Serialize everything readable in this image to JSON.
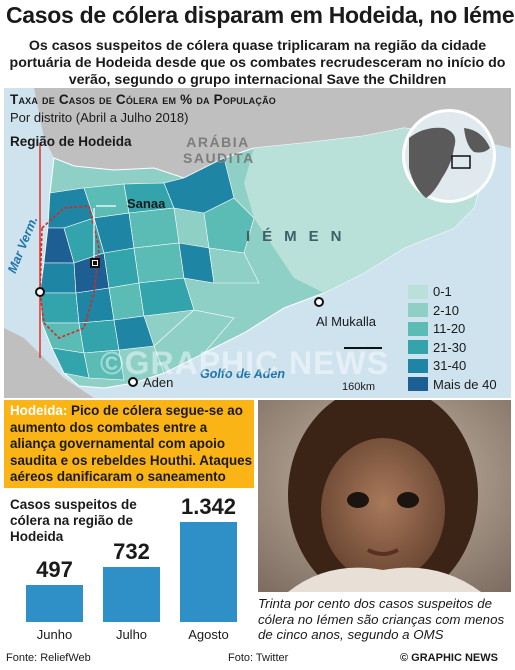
{
  "title": "Casos de cólera disparam em Hodeida, no Iémen",
  "subtitle": "Os casos suspeitos de cólera quase triplicaram na região da cidade portuária de Hodeida desde que os combates recrudesceram no início do verão, segundo o grupo internacional Save the Children",
  "map": {
    "title": "Taxa de Casos de Cólera em % da População",
    "subtitle": "Por distrito (Abril a Julho 2018)",
    "region_label": "Região de Hodeida",
    "labels": {
      "saudi": "ARÁBIA SAUDITA",
      "yemen": "IÉMEN",
      "sanaa": "Sanaa",
      "mukalla": "Al Mukalla",
      "aden": "Aden",
      "red_sea": "Mar Verm.",
      "gulf": "Golfo de Aden"
    },
    "scale": "160km",
    "legend": [
      {
        "label": "0-1",
        "color": "#b9e1da"
      },
      {
        "label": "2-10",
        "color": "#8fd0c6"
      },
      {
        "label": "11-20",
        "color": "#5bbcb6"
      },
      {
        "label": "21-30",
        "color": "#33a4ac"
      },
      {
        "label": "31-40",
        "color": "#1f85a4"
      },
      {
        "label": "Mais de 40",
        "color": "#1d5f93"
      }
    ]
  },
  "info": {
    "head": "Hodeida:",
    "body": " Pico de cólera segue-se ao aumento dos combates entre a aliança governamental com apoio saudita e os rebeldes Houthi. Ataques aéreos danificaram o saneamento"
  },
  "chart_data": {
    "type": "bar",
    "title": "Casos suspeitos de cólera na região de Hodeida",
    "categories": [
      "Junho",
      "Julho",
      "Agosto"
    ],
    "values": [
      497,
      732,
      1342
    ],
    "value_labels": [
      "497",
      "732",
      "1.342"
    ]
  },
  "photo_caption": "Trinta por cento dos casos suspeitos de cólera no Iémen são crianças com menos de cinco anos, segundo a OMS",
  "source_left": "Fonte: ReliefWeb",
  "source_photo": "Foto: Twitter",
  "copyright": "© GRAPHIC NEWS",
  "watermark": "©GRAPHIC NEWS"
}
